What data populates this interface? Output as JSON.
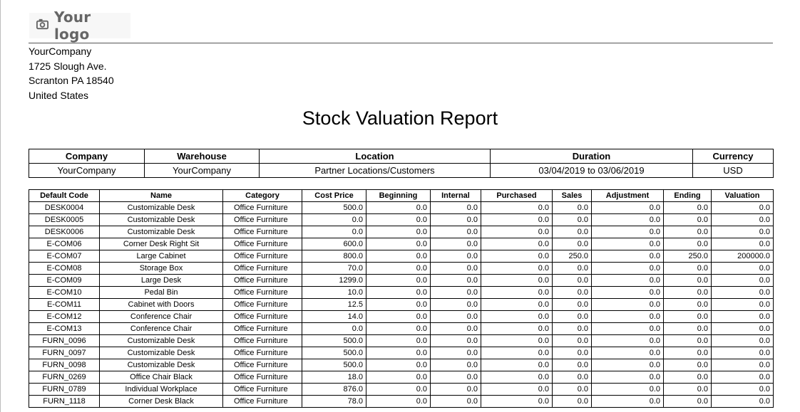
{
  "logo": {
    "text": "Your logo",
    "icon": "camera-icon"
  },
  "company_address": {
    "name": "YourCompany",
    "street": "1725 Slough Ave.",
    "city": "Scranton PA 18540",
    "country": "United States"
  },
  "report_title": "Stock Valuation Report",
  "summary": {
    "headers": [
      "Company",
      "Warehouse",
      "Location",
      "Duration",
      "Currency"
    ],
    "values": [
      "YourCompany",
      "YourCompany",
      "Partner Locations/Customers",
      "03/04/2019 to 03/06/2019",
      "USD"
    ]
  },
  "stock_table": {
    "headers": [
      "Default Code",
      "Name",
      "Category",
      "Cost Price",
      "Beginning",
      "Internal",
      "Purchased",
      "Sales",
      "Adjustment",
      "Ending",
      "Valuation"
    ],
    "rows": [
      [
        "DESK0004",
        "Customizable Desk",
        "Office Furniture",
        "500.0",
        "0.0",
        "0.0",
        "0.0",
        "0.0",
        "0.0",
        "0.0",
        "0.0"
      ],
      [
        "DESK0005",
        "Customizable Desk",
        "Office Furniture",
        "0.0",
        "0.0",
        "0.0",
        "0.0",
        "0.0",
        "0.0",
        "0.0",
        "0.0"
      ],
      [
        "DESK0006",
        "Customizable Desk",
        "Office Furniture",
        "0.0",
        "0.0",
        "0.0",
        "0.0",
        "0.0",
        "0.0",
        "0.0",
        "0.0"
      ],
      [
        "E-COM06",
        "Corner Desk Right Sit",
        "Office Furniture",
        "600.0",
        "0.0",
        "0.0",
        "0.0",
        "0.0",
        "0.0",
        "0.0",
        "0.0"
      ],
      [
        "E-COM07",
        "Large Cabinet",
        "Office Furniture",
        "800.0",
        "0.0",
        "0.0",
        "0.0",
        "250.0",
        "0.0",
        "250.0",
        "200000.0"
      ],
      [
        "E-COM08",
        "Storage Box",
        "Office Furniture",
        "70.0",
        "0.0",
        "0.0",
        "0.0",
        "0.0",
        "0.0",
        "0.0",
        "0.0"
      ],
      [
        "E-COM09",
        "Large Desk",
        "Office Furniture",
        "1299.0",
        "0.0",
        "0.0",
        "0.0",
        "0.0",
        "0.0",
        "0.0",
        "0.0"
      ],
      [
        "E-COM10",
        "Pedal Bin",
        "Office Furniture",
        "10.0",
        "0.0",
        "0.0",
        "0.0",
        "0.0",
        "0.0",
        "0.0",
        "0.0"
      ],
      [
        "E-COM11",
        "Cabinet with Doors",
        "Office Furniture",
        "12.5",
        "0.0",
        "0.0",
        "0.0",
        "0.0",
        "0.0",
        "0.0",
        "0.0"
      ],
      [
        "E-COM12",
        "Conference Chair",
        "Office Furniture",
        "14.0",
        "0.0",
        "0.0",
        "0.0",
        "0.0",
        "0.0",
        "0.0",
        "0.0"
      ],
      [
        "E-COM13",
        "Conference Chair",
        "Office Furniture",
        "0.0",
        "0.0",
        "0.0",
        "0.0",
        "0.0",
        "0.0",
        "0.0",
        "0.0"
      ],
      [
        "FURN_0096",
        "Customizable Desk",
        "Office Furniture",
        "500.0",
        "0.0",
        "0.0",
        "0.0",
        "0.0",
        "0.0",
        "0.0",
        "0.0"
      ],
      [
        "FURN_0097",
        "Customizable Desk",
        "Office Furniture",
        "500.0",
        "0.0",
        "0.0",
        "0.0",
        "0.0",
        "0.0",
        "0.0",
        "0.0"
      ],
      [
        "FURN_0098",
        "Customizable Desk",
        "Office Furniture",
        "500.0",
        "0.0",
        "0.0",
        "0.0",
        "0.0",
        "0.0",
        "0.0",
        "0.0"
      ],
      [
        "FURN_0269",
        "Office Chair Black",
        "Office Furniture",
        "18.0",
        "0.0",
        "0.0",
        "0.0",
        "0.0",
        "0.0",
        "0.0",
        "0.0"
      ],
      [
        "FURN_0789",
        "Individual Workplace",
        "Office Furniture",
        "876.0",
        "0.0",
        "0.0",
        "0.0",
        "0.0",
        "0.0",
        "0.0",
        "0.0"
      ],
      [
        "FURN_1118",
        "Corner Desk Black",
        "Office Furniture",
        "78.0",
        "0.0",
        "0.0",
        "0.0",
        "0.0",
        "0.0",
        "0.0",
        "0.0"
      ]
    ]
  }
}
